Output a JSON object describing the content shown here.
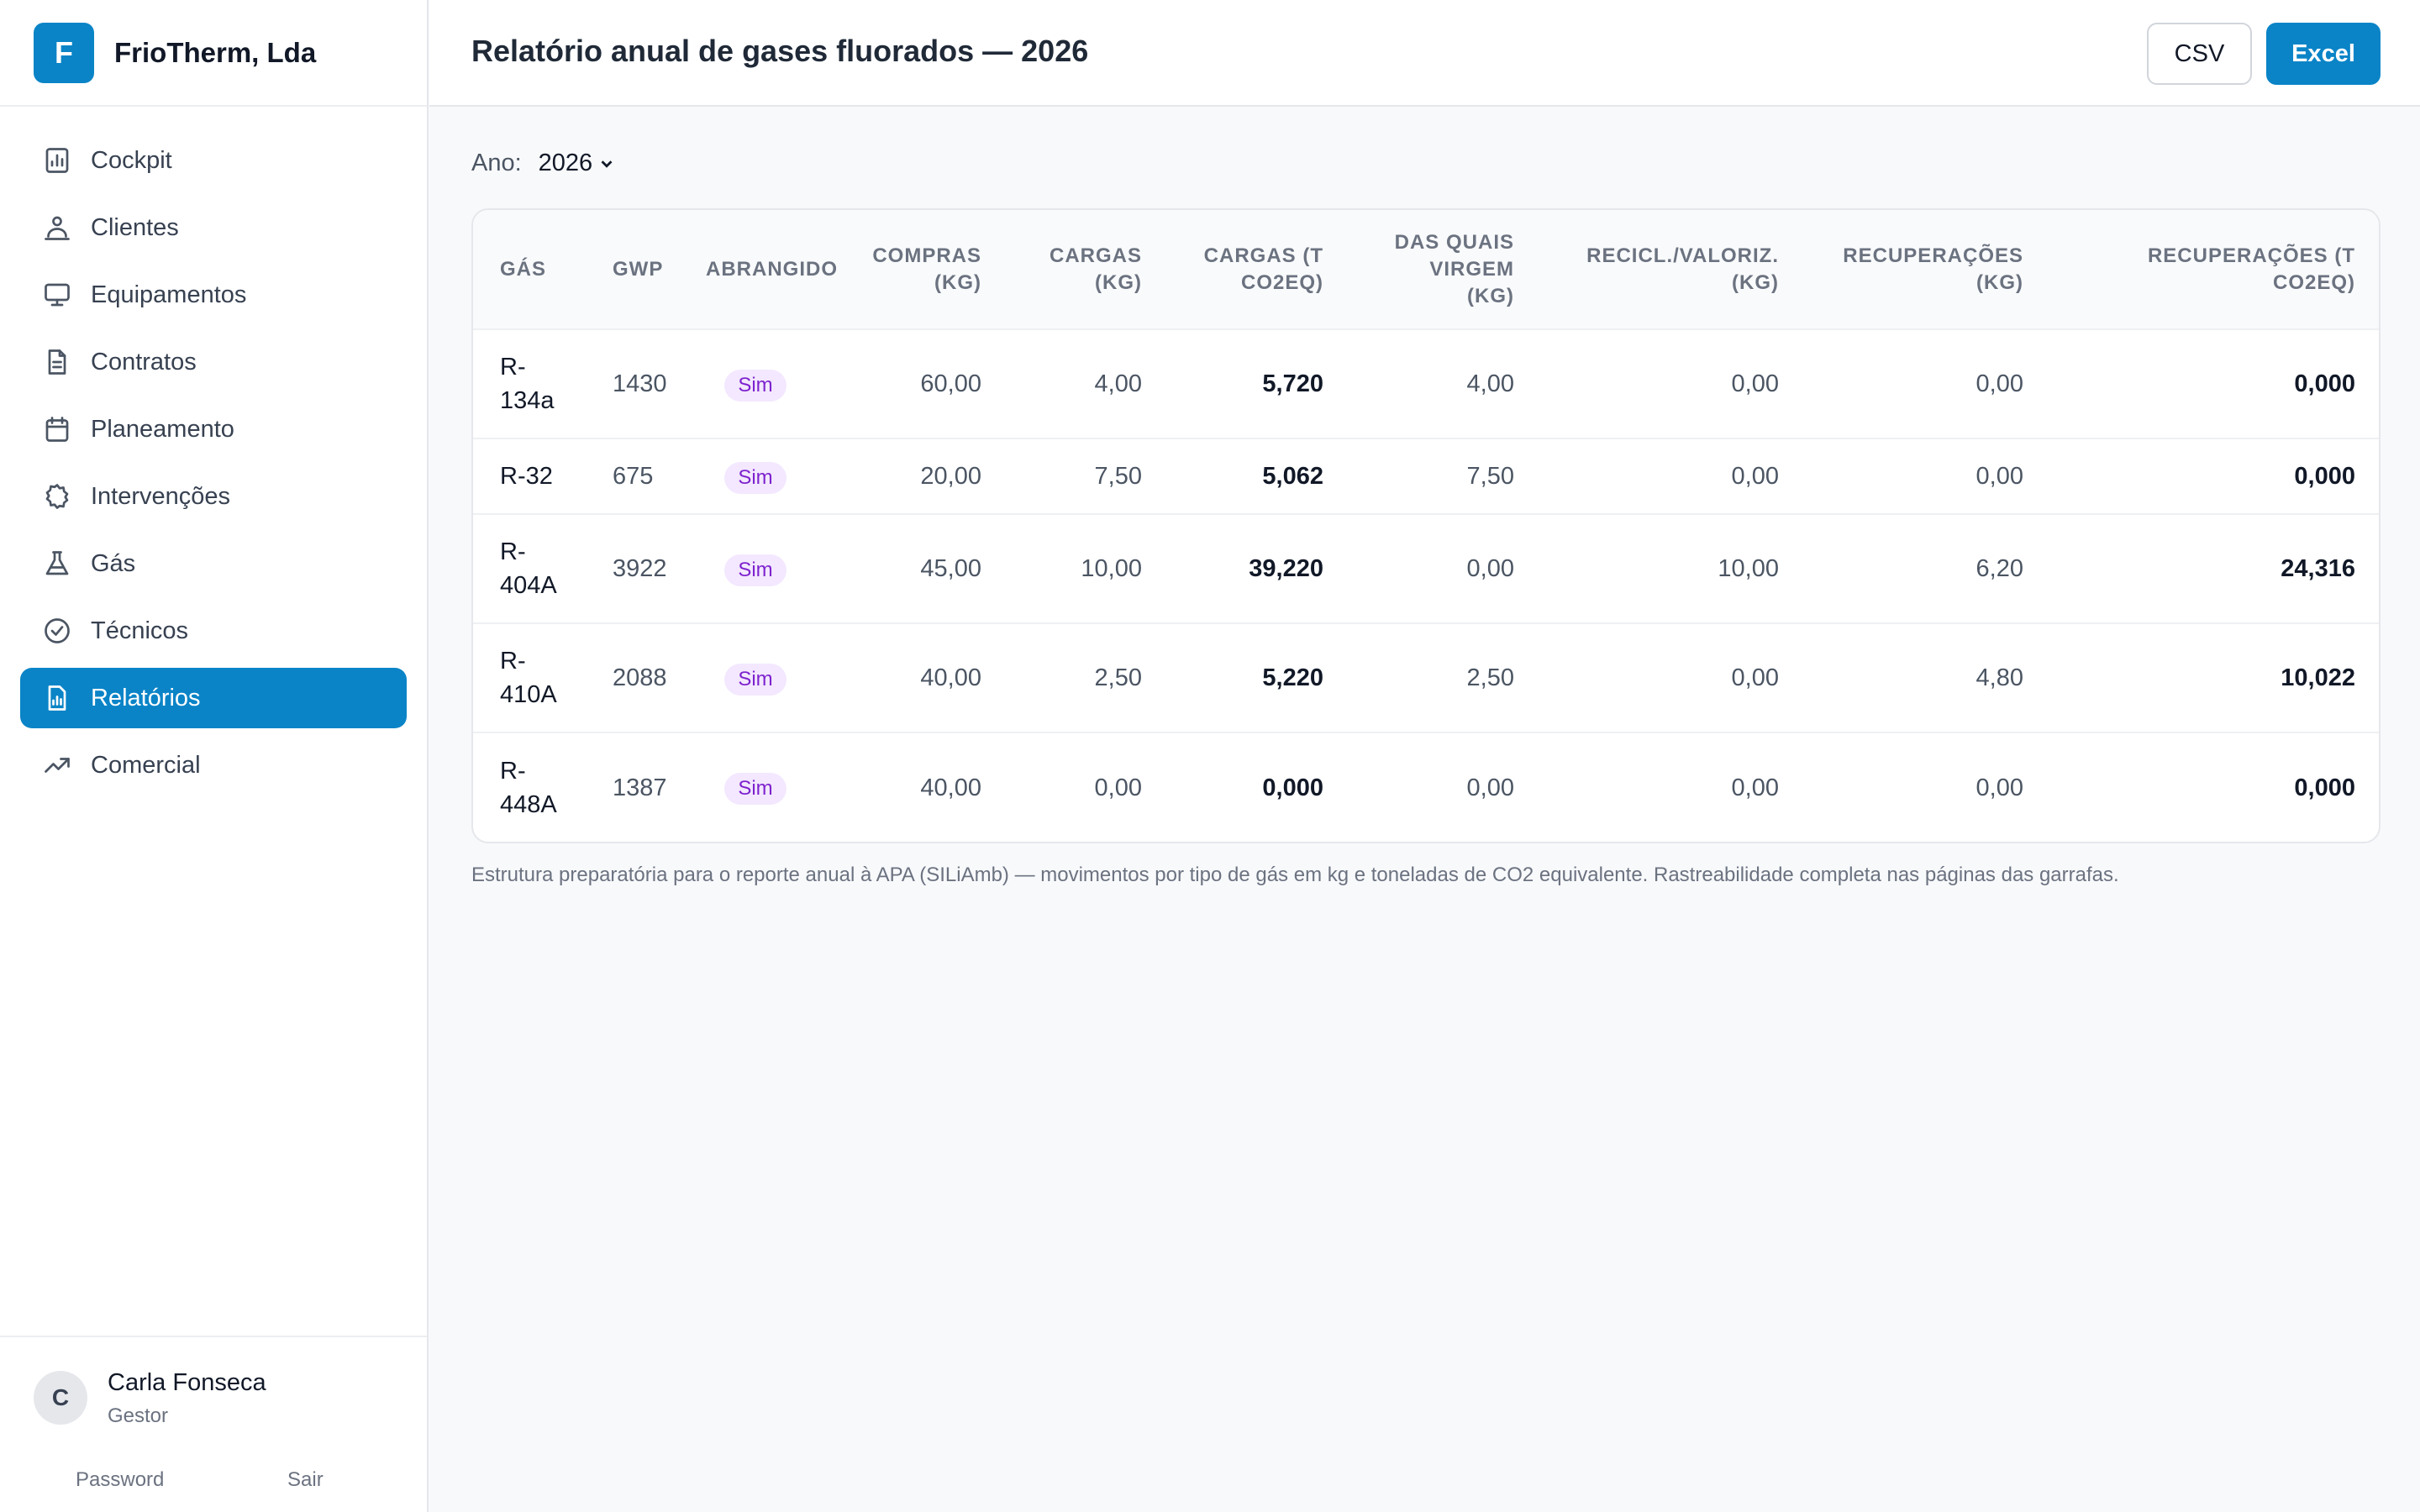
{
  "brand": {
    "logo_letter": "F",
    "name": "FrioTherm, Lda"
  },
  "sidebar": {
    "items": [
      {
        "label": "Cockpit",
        "icon": "chart-icon"
      },
      {
        "label": "Clientes",
        "icon": "users-icon"
      },
      {
        "label": "Equipamentos",
        "icon": "monitor-icon"
      },
      {
        "label": "Contratos",
        "icon": "document-icon"
      },
      {
        "label": "Planeamento",
        "icon": "calendar-icon"
      },
      {
        "label": "Intervenções",
        "icon": "cog-icon"
      },
      {
        "label": "Gás",
        "icon": "flask-icon"
      },
      {
        "label": "Técnicos",
        "icon": "check-circle-icon"
      },
      {
        "label": "Relatórios",
        "icon": "report-icon",
        "active": true
      },
      {
        "label": "Comercial",
        "icon": "trending-icon"
      }
    ]
  },
  "user": {
    "initial": "C",
    "name": "Carla Fonseca",
    "role": "Gestor",
    "password_link": "Password",
    "logout_link": "Sair"
  },
  "header": {
    "title": "Relatório anual de gases fluorados — 2026",
    "csv_label": "CSV",
    "excel_label": "Excel"
  },
  "filters": {
    "year_label": "Ano:",
    "year_value": "2026"
  },
  "table": {
    "columns": [
      "GÁS",
      "GWP",
      "ABRANGIDO",
      "COMPRAS (KG)",
      "CARGAS (KG)",
      "CARGAS (T CO2EQ)",
      "DAS QUAIS VIRGEM (KG)",
      "RECICL./VALORIZ. (KG)",
      "RECUPERAÇÕES (KG)",
      "RECUPERAÇÕES (T CO2EQ)"
    ],
    "rows": [
      {
        "gas": "R-134a",
        "gwp": "1430",
        "covered": "Sim",
        "purchases": "60,00",
        "charges": "4,00",
        "charges_t": "5,720",
        "virgin": "4,00",
        "recycled": "0,00",
        "recovered": "0,00",
        "recovered_t": "0,000"
      },
      {
        "gas": "R-32",
        "gwp": "675",
        "covered": "Sim",
        "purchases": "20,00",
        "charges": "7,50",
        "charges_t": "5,062",
        "virgin": "7,50",
        "recycled": "0,00",
        "recovered": "0,00",
        "recovered_t": "0,000"
      },
      {
        "gas": "R-404A",
        "gwp": "3922",
        "covered": "Sim",
        "purchases": "45,00",
        "charges": "10,00",
        "charges_t": "39,220",
        "virgin": "0,00",
        "recycled": "10,00",
        "recovered": "6,20",
        "recovered_t": "24,316"
      },
      {
        "gas": "R-410A",
        "gwp": "2088",
        "covered": "Sim",
        "purchases": "40,00",
        "charges": "2,50",
        "charges_t": "5,220",
        "virgin": "2,50",
        "recycled": "0,00",
        "recovered": "4,80",
        "recovered_t": "10,022"
      },
      {
        "gas": "R-448A",
        "gwp": "1387",
        "covered": "Sim",
        "purchases": "40,00",
        "charges": "0,00",
        "charges_t": "0,000",
        "virgin": "0,00",
        "recycled": "0,00",
        "recovered": "0,00",
        "recovered_t": "0,000"
      }
    ]
  },
  "footnote": "Estrutura preparatória para o reporte anual à APA (SILiAmb) — movimentos por tipo de gás em kg e toneladas de CO2 equivalente. Rastreabilidade completa nas páginas das garrafas.",
  "colors": {
    "accent": "#0a84c7",
    "badge_bg": "#f3e8ff",
    "badge_text": "#7e22ce"
  }
}
